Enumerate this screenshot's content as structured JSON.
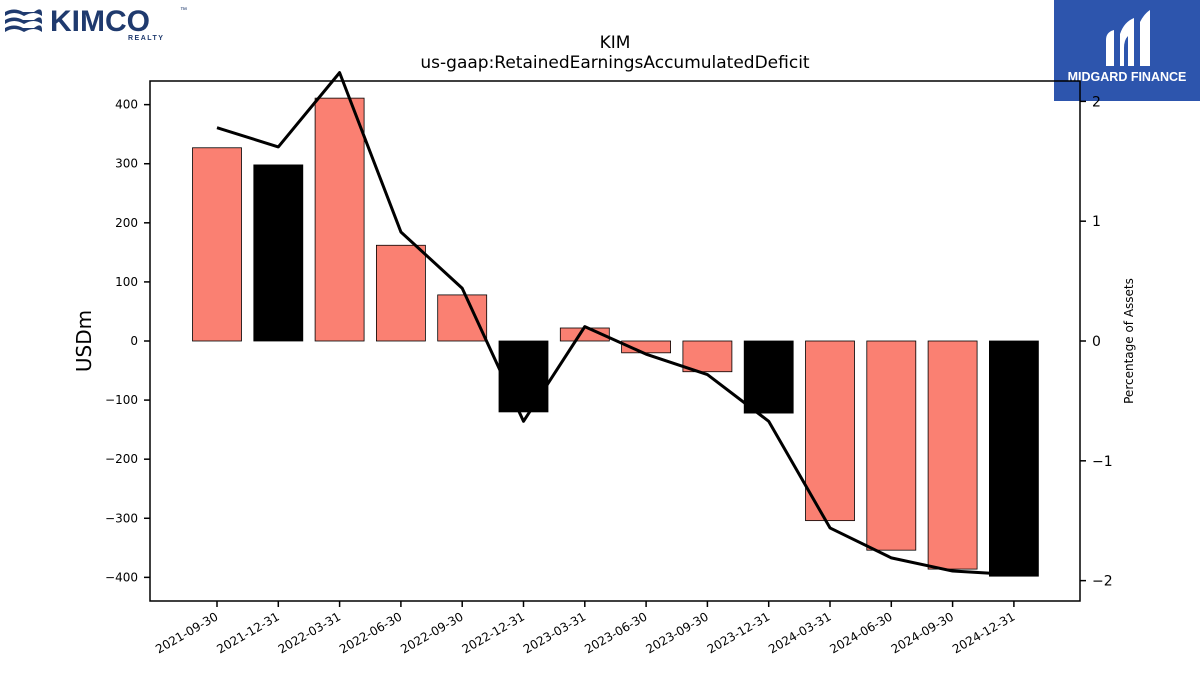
{
  "logos": {
    "left": {
      "text": "KIMCO",
      "sub": "REALTY",
      "tm": "™",
      "color": "#1f3a6e"
    },
    "right": {
      "text": "MIDGARD FINANCE",
      "bg": "#2d55ad"
    }
  },
  "chart_data": {
    "type": "bar",
    "title": "KIM",
    "subtitle": "us-gaap:RetainedEarningsAccumulatedDeficit",
    "ylabel": "USDm",
    "y2label": "Percentage of Assets",
    "categories": [
      "2021-09-30",
      "2021-12-31",
      "2022-03-31",
      "2022-06-30",
      "2022-09-30",
      "2022-12-31",
      "2023-03-31",
      "2023-06-30",
      "2023-09-30",
      "2023-12-31",
      "2024-03-31",
      "2024-06-30",
      "2024-09-30",
      "2024-12-31"
    ],
    "series": [
      {
        "type": "bar",
        "axis": "left",
        "values": [
          327,
          298,
          411,
          162,
          78,
          -120,
          22,
          -20,
          -52,
          -122,
          -304,
          -354,
          -386,
          -398
        ]
      },
      {
        "type": "line",
        "axis": "right",
        "values": [
          1.78,
          1.62,
          2.24,
          0.91,
          0.44,
          -0.67,
          0.12,
          -0.11,
          -0.28,
          -0.67,
          -1.56,
          -1.81,
          -1.92,
          -1.95
        ]
      }
    ],
    "bar_colors": [
      "#fa8072",
      "#000000",
      "#fa8072",
      "#fa8072",
      "#fa8072",
      "#000000",
      "#fa8072",
      "#fa8072",
      "#fa8072",
      "#000000",
      "#fa8072",
      "#fa8072",
      "#fa8072",
      "#000000"
    ],
    "line_color": "#000000",
    "ylim": [
      -440,
      440
    ],
    "y2lim": [
      -2.17,
      2.17
    ],
    "yticks": [
      -400,
      -300,
      -200,
      -100,
      0,
      100,
      200,
      300,
      400
    ],
    "y2ticks": [
      -2,
      -1,
      0,
      1,
      2
    ],
    "ytick_labels": [
      "−400",
      "−300",
      "−200",
      "−100",
      "0",
      "100",
      "200",
      "300",
      "400"
    ],
    "y2tick_labels": [
      "−2",
      "−1",
      "0",
      "1",
      "2"
    ],
    "grid": false,
    "legend": "none"
  }
}
